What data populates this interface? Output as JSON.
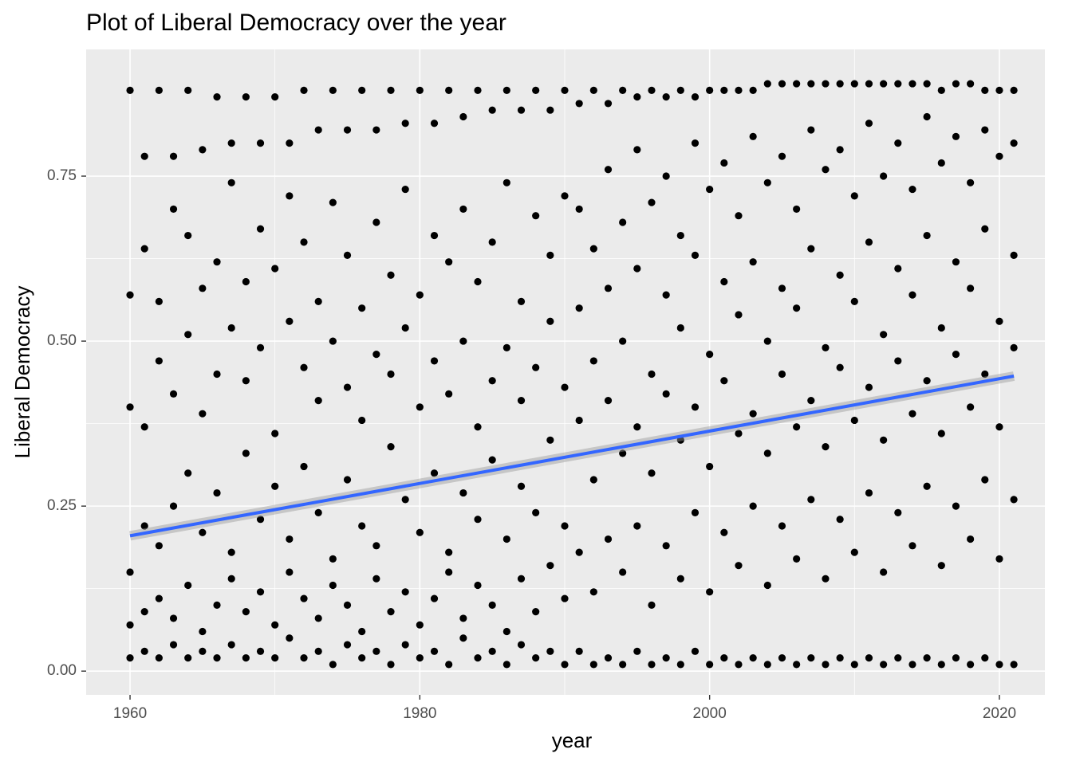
{
  "chart_data": {
    "type": "scatter",
    "title": "Plot of Liberal Democracy over the year",
    "x_label": "year",
    "y_label": "Liberal Democracy",
    "color": "#000000",
    "grid": true,
    "xlim": [
      1956.97,
      2023.14
    ],
    "ylim": [
      -0.036,
      0.942
    ],
    "xticks": [
      1960,
      1980,
      2000,
      2020
    ],
    "yticks": [
      {
        "value": 0,
        "label": "0.00"
      },
      {
        "value": 0.25,
        "label": "0.25"
      },
      {
        "value": 0.5,
        "label": "0.50"
      },
      {
        "value": 0.75,
        "label": "0.75"
      }
    ],
    "x": [
      1960,
      1960,
      1960,
      1960,
      1960,
      1960,
      1961,
      1961,
      1961,
      1961,
      1961,
      1961,
      1962,
      1962,
      1962,
      1962,
      1962,
      1962,
      1963,
      1963,
      1963,
      1963,
      1963,
      1963,
      1964,
      1964,
      1964,
      1964,
      1964,
      1964,
      1965,
      1965,
      1965,
      1965,
      1965,
      1965,
      1966,
      1966,
      1966,
      1966,
      1966,
      1966,
      1967,
      1967,
      1967,
      1967,
      1967,
      1967,
      1968,
      1968,
      1968,
      1968,
      1968,
      1968,
      1969,
      1969,
      1969,
      1969,
      1969,
      1969,
      1970,
      1970,
      1970,
      1970,
      1970,
      1970,
      1971,
      1971,
      1971,
      1971,
      1971,
      1971,
      1972,
      1972,
      1972,
      1972,
      1972,
      1972,
      1973,
      1973,
      1973,
      1973,
      1973,
      1973,
      1974,
      1974,
      1974,
      1974,
      1974,
      1974,
      1975,
      1975,
      1975,
      1975,
      1975,
      1975,
      1976,
      1976,
      1976,
      1976,
      1976,
      1976,
      1977,
      1977,
      1977,
      1977,
      1977,
      1977,
      1978,
      1978,
      1978,
      1978,
      1978,
      1978,
      1979,
      1979,
      1979,
      1979,
      1979,
      1979,
      1980,
      1980,
      1980,
      1980,
      1980,
      1980,
      1981,
      1981,
      1981,
      1981,
      1981,
      1981,
      1982,
      1982,
      1982,
      1982,
      1982,
      1982,
      1983,
      1983,
      1983,
      1983,
      1983,
      1983,
      1984,
      1984,
      1984,
      1984,
      1984,
      1984,
      1985,
      1985,
      1985,
      1985,
      1985,
      1985,
      1986,
      1986,
      1986,
      1986,
      1986,
      1986,
      1987,
      1987,
      1987,
      1987,
      1987,
      1987,
      1988,
      1988,
      1988,
      1988,
      1988,
      1988,
      1989,
      1989,
      1989,
      1989,
      1989,
      1989,
      1990,
      1990,
      1990,
      1990,
      1990,
      1990,
      1991,
      1991,
      1991,
      1991,
      1991,
      1991,
      1992,
      1992,
      1992,
      1992,
      1992,
      1992,
      1993,
      1993,
      1993,
      1993,
      1993,
      1993,
      1994,
      1994,
      1994,
      1994,
      1994,
      1994,
      1995,
      1995,
      1995,
      1995,
      1995,
      1995,
      1996,
      1996,
      1996,
      1996,
      1996,
      1996,
      1997,
      1997,
      1997,
      1997,
      1997,
      1997,
      1998,
      1998,
      1998,
      1998,
      1998,
      1998,
      1999,
      1999,
      1999,
      1999,
      1999,
      1999,
      2000,
      2000,
      2000,
      2000,
      2000,
      2000,
      2001,
      2001,
      2001,
      2001,
      2001,
      2001,
      2002,
      2002,
      2002,
      2002,
      2002,
      2002,
      2003,
      2003,
      2003,
      2003,
      2003,
      2003,
      2004,
      2004,
      2004,
      2004,
      2004,
      2004,
      2005,
      2005,
      2005,
      2005,
      2005,
      2005,
      2006,
      2006,
      2006,
      2006,
      2006,
      2006,
      2007,
      2007,
      2007,
      2007,
      2007,
      2007,
      2008,
      2008,
      2008,
      2008,
      2008,
      2008,
      2009,
      2009,
      2009,
      2009,
      2009,
      2009,
      2010,
      2010,
      2010,
      2010,
      2010,
      2010,
      2011,
      2011,
      2011,
      2011,
      2011,
      2011,
      2012,
      2012,
      2012,
      2012,
      2012,
      2012,
      2013,
      2013,
      2013,
      2013,
      2013,
      2013,
      2014,
      2014,
      2014,
      2014,
      2014,
      2014,
      2015,
      2015,
      2015,
      2015,
      2015,
      2015,
      2016,
      2016,
      2016,
      2016,
      2016,
      2016,
      2017,
      2017,
      2017,
      2017,
      2017,
      2017,
      2018,
      2018,
      2018,
      2018,
      2018,
      2018,
      2019,
      2019,
      2019,
      2019,
      2019,
      2019,
      2020,
      2020,
      2020,
      2020,
      2020,
      2020,
      2021,
      2021,
      2021,
      2021,
      2021,
      2021
    ],
    "values": [
      0.02,
      0.07,
      0.15,
      0.4,
      0.57,
      0.88,
      0.03,
      0.09,
      0.22,
      0.37,
      0.64,
      0.78,
      0.02,
      0.11,
      0.19,
      0.47,
      0.56,
      0.88,
      0.04,
      0.08,
      0.25,
      0.42,
      0.7,
      0.78,
      0.02,
      0.13,
      0.3,
      0.51,
      0.66,
      0.88,
      0.03,
      0.06,
      0.21,
      0.39,
      0.58,
      0.79,
      0.02,
      0.1,
      0.27,
      0.45,
      0.62,
      0.87,
      0.04,
      0.14,
      0.18,
      0.52,
      0.74,
      0.8,
      0.02,
      0.09,
      0.33,
      0.44,
      0.59,
      0.87,
      0.03,
      0.12,
      0.23,
      0.49,
      0.67,
      0.8,
      0.02,
      0.07,
      0.28,
      0.36,
      0.61,
      0.87,
      0.05,
      0.15,
      0.2,
      0.53,
      0.72,
      0.8,
      0.02,
      0.11,
      0.31,
      0.46,
      0.65,
      0.88,
      0.03,
      0.08,
      0.24,
      0.41,
      0.56,
      0.82,
      0.01,
      0.13,
      0.17,
      0.5,
      0.71,
      0.88,
      0.04,
      0.1,
      0.29,
      0.43,
      0.63,
      0.82,
      0.02,
      0.06,
      0.22,
      0.38,
      0.55,
      0.88,
      0.03,
      0.14,
      0.19,
      0.48,
      0.68,
      0.82,
      0.01,
      0.09,
      0.34,
      0.45,
      0.6,
      0.88,
      0.04,
      0.12,
      0.26,
      0.52,
      0.73,
      0.83,
      0.02,
      0.07,
      0.21,
      0.4,
      0.57,
      0.88,
      0.03,
      0.11,
      0.3,
      0.47,
      0.66,
      0.83,
      0.01,
      0.15,
      0.18,
      0.42,
      0.62,
      0.88,
      0.05,
      0.08,
      0.27,
      0.5,
      0.7,
      0.84,
      0.02,
      0.13,
      0.23,
      0.37,
      0.59,
      0.88,
      0.03,
      0.1,
      0.32,
      0.44,
      0.65,
      0.85,
      0.01,
      0.06,
      0.2,
      0.49,
      0.74,
      0.88,
      0.04,
      0.14,
      0.28,
      0.41,
      0.56,
      0.85,
      0.02,
      0.09,
      0.24,
      0.46,
      0.69,
      0.88,
      0.03,
      0.16,
      0.35,
      0.53,
      0.63,
      0.85,
      0.01,
      0.11,
      0.22,
      0.43,
      0.72,
      0.88,
      0.03,
      0.18,
      0.38,
      0.55,
      0.7,
      0.86,
      0.01,
      0.12,
      0.29,
      0.47,
      0.64,
      0.88,
      0.02,
      0.2,
      0.41,
      0.58,
      0.76,
      0.86,
      0.01,
      0.15,
      0.33,
      0.5,
      0.68,
      0.88,
      0.03,
      0.22,
      0.37,
      0.61,
      0.79,
      0.87,
      0.01,
      0.1,
      0.3,
      0.45,
      0.71,
      0.88,
      0.02,
      0.19,
      0.42,
      0.57,
      0.75,
      0.87,
      0.01,
      0.14,
      0.35,
      0.52,
      0.66,
      0.88,
      0.03,
      0.24,
      0.4,
      0.63,
      0.8,
      0.87,
      0.01,
      0.12,
      0.31,
      0.48,
      0.73,
      0.88,
      0.02,
      0.21,
      0.44,
      0.59,
      0.77,
      0.88,
      0.01,
      0.16,
      0.36,
      0.54,
      0.69,
      0.88,
      0.02,
      0.25,
      0.39,
      0.62,
      0.81,
      0.88,
      0.01,
      0.13,
      0.33,
      0.5,
      0.74,
      0.89,
      0.02,
      0.22,
      0.45,
      0.58,
      0.78,
      0.89,
      0.01,
      0.17,
      0.37,
      0.55,
      0.7,
      0.89,
      0.02,
      0.26,
      0.41,
      0.64,
      0.82,
      0.89,
      0.01,
      0.14,
      0.34,
      0.49,
      0.76,
      0.89,
      0.02,
      0.23,
      0.46,
      0.6,
      0.79,
      0.89,
      0.01,
      0.18,
      0.38,
      0.56,
      0.72,
      0.89,
      0.02,
      0.27,
      0.43,
      0.65,
      0.83,
      0.89,
      0.01,
      0.15,
      0.35,
      0.51,
      0.75,
      0.89,
      0.02,
      0.24,
      0.47,
      0.61,
      0.8,
      0.89,
      0.01,
      0.19,
      0.39,
      0.57,
      0.73,
      0.89,
      0.02,
      0.28,
      0.44,
      0.66,
      0.84,
      0.89,
      0.01,
      0.16,
      0.36,
      0.52,
      0.77,
      0.88,
      0.02,
      0.25,
      0.48,
      0.62,
      0.81,
      0.89,
      0.01,
      0.2,
      0.4,
      0.58,
      0.74,
      0.89,
      0.02,
      0.29,
      0.45,
      0.67,
      0.82,
      0.88,
      0.01,
      0.17,
      0.37,
      0.53,
      0.78,
      0.88,
      0.01,
      0.26,
      0.49,
      0.63,
      0.8,
      0.88
    ],
    "trend": {
      "x": [
        1960,
        2021
      ],
      "values": [
        0.205,
        0.447
      ],
      "color": "#3366ff"
    }
  }
}
